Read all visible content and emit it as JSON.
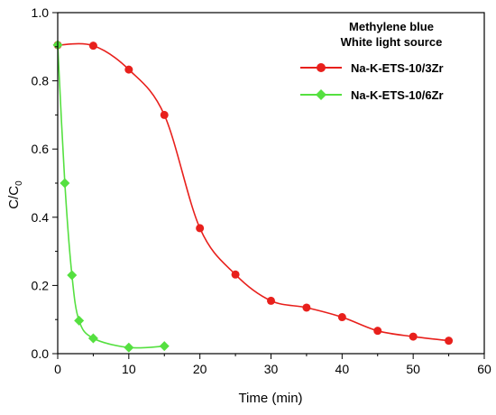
{
  "chart_data": {
    "type": "line",
    "xlabel": "Time (min)",
    "ylabel": "C/C",
    "ylabel_sub": "0",
    "xlim": [
      0,
      60
    ],
    "ylim": [
      0.0,
      1.0
    ],
    "xticks": [
      "0",
      "10",
      "20",
      "30",
      "40",
      "50",
      "60"
    ],
    "yticks": [
      "0.0",
      "0.2",
      "0.4",
      "0.6",
      "0.8",
      "1.0"
    ],
    "grid": false,
    "legend": {
      "position": "top-right",
      "title_line1": "Methylene blue",
      "title_line2": "White light source"
    },
    "series": [
      {
        "name": "Na-K-ETS-10/3Zr",
        "color": "#e8201c",
        "marker": "circle",
        "x": [
          0,
          5,
          10,
          15,
          20,
          25,
          30,
          35,
          40,
          45,
          50,
          55
        ],
        "y": [
          0.905,
          0.903,
          0.833,
          0.7,
          0.368,
          0.232,
          0.155,
          0.135,
          0.107,
          0.067,
          0.05,
          0.038
        ]
      },
      {
        "name": "Na-K-ETS-10/6Zr",
        "color": "#55e040",
        "marker": "diamond",
        "x": [
          0,
          1,
          2,
          3,
          5,
          10,
          15
        ],
        "y": [
          0.905,
          0.5,
          0.23,
          0.097,
          0.045,
          0.018,
          0.022
        ]
      }
    ]
  }
}
